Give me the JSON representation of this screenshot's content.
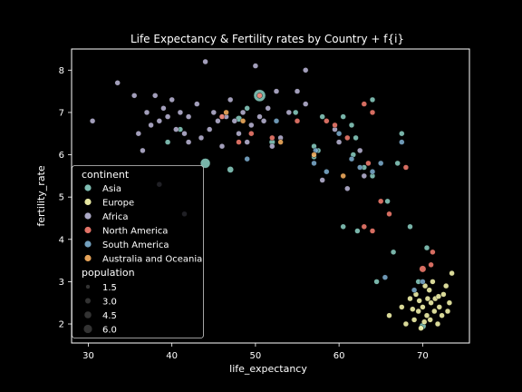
{
  "chart_data": {
    "type": "scatter",
    "title": "Life Expectancy & Fertility rates by Country + f{i}",
    "xlabel": "life_expectancy",
    "ylabel": "fertility_rate",
    "xlim": [
      28,
      75.6
    ],
    "ylim": [
      1.55,
      8.5
    ],
    "xticks": [
      30,
      40,
      50,
      60,
      70
    ],
    "yticks": [
      2,
      3,
      4,
      5,
      6,
      7,
      8
    ],
    "grid": false,
    "legend_placement": "lower-left",
    "legend": {
      "hue_title": "continent",
      "size_title": "population",
      "size_entries": [
        "1.5",
        "3.0",
        "4.5",
        "6.0"
      ]
    },
    "series": [
      {
        "name": "Asia",
        "color": "#8dd3c7",
        "points": [
          [
            44.0,
            5.8,
            2.5
          ],
          [
            50.5,
            7.4,
            3.3
          ],
          [
            48.0,
            6.85,
            1.2
          ],
          [
            47.0,
            5.65,
            1.2
          ],
          [
            52.0,
            6.3,
            1.0
          ],
          [
            54.8,
            7.0,
            0.8
          ],
          [
            57.0,
            6.2,
            0.8
          ],
          [
            57.5,
            6.1,
            0.8
          ],
          [
            57.0,
            5.95,
            0.8
          ],
          [
            60.5,
            6.9,
            0.8
          ],
          [
            61.5,
            6.7,
            0.8
          ],
          [
            61.7,
            6.0,
            0.8
          ],
          [
            63.0,
            5.7,
            0.8
          ],
          [
            64.0,
            5.5,
            0.8
          ],
          [
            65.8,
            4.9,
            0.8
          ],
          [
            60.5,
            4.3,
            0.8
          ],
          [
            62.2,
            4.2,
            0.8
          ],
          [
            66.5,
            3.7,
            0.8
          ],
          [
            68.5,
            4.3,
            0.8
          ],
          [
            69.5,
            3.0,
            0.8
          ],
          [
            70.5,
            3.8,
            0.8
          ],
          [
            64.5,
            3.0,
            0.8
          ],
          [
            70.0,
            1.95,
            1.3
          ],
          [
            67.0,
            5.8,
            0.8
          ],
          [
            67.5,
            6.5,
            0.8
          ],
          [
            62.0,
            6.4,
            0.8
          ],
          [
            64.0,
            7.3,
            0.8
          ],
          [
            41.0,
            6.6,
            0.8
          ],
          [
            39.5,
            6.3,
            0.8
          ],
          [
            46.0,
            6.9,
            0.8
          ],
          [
            49.0,
            7.1,
            0.8
          ],
          [
            58.0,
            6.9,
            0.8
          ]
        ]
      },
      {
        "name": "Europe",
        "color": "#ffffb3",
        "points": [
          [
            69.0,
            2.1,
            0.8
          ],
          [
            69.5,
            2.3,
            0.8
          ],
          [
            70.0,
            2.4,
            0.8
          ],
          [
            70.5,
            2.2,
            0.8
          ],
          [
            71.0,
            2.5,
            0.8
          ],
          [
            71.5,
            2.6,
            0.8
          ],
          [
            72.0,
            2.4,
            0.8
          ],
          [
            72.5,
            2.7,
            0.8
          ],
          [
            73.0,
            2.3,
            0.8
          ],
          [
            69.2,
            2.7,
            0.8
          ],
          [
            70.3,
            2.9,
            0.8
          ],
          [
            70.8,
            2.8,
            0.8
          ],
          [
            71.2,
            3.0,
            0.8
          ],
          [
            68.0,
            2.0,
            0.8
          ],
          [
            69.8,
            1.9,
            0.8
          ],
          [
            70.2,
            2.05,
            0.8
          ],
          [
            71.8,
            2.0,
            0.8
          ],
          [
            72.8,
            2.9,
            0.8
          ],
          [
            73.5,
            3.2,
            0.8
          ],
          [
            68.5,
            2.6,
            0.8
          ],
          [
            70.6,
            2.6,
            0.8
          ],
          [
            71.4,
            2.3,
            0.8
          ],
          [
            66.0,
            2.2,
            0.8
          ],
          [
            67.5,
            2.4,
            0.8
          ],
          [
            73.2,
            2.5,
            0.8
          ],
          [
            69.6,
            2.55,
            0.8
          ],
          [
            71.9,
            2.65,
            0.8
          ],
          [
            72.3,
            2.2,
            0.8
          ],
          [
            70.9,
            2.1,
            0.8
          ],
          [
            68.8,
            2.35,
            0.8
          ]
        ]
      },
      {
        "name": "Africa",
        "color": "#bebada",
        "points": [
          [
            30.5,
            6.8,
            0.8
          ],
          [
            33.5,
            7.7,
            0.8
          ],
          [
            35.5,
            7.4,
            0.8
          ],
          [
            36.0,
            6.5,
            0.8
          ],
          [
            37.0,
            7.0,
            0.8
          ],
          [
            37.5,
            6.7,
            0.8
          ],
          [
            38.0,
            7.4,
            0.8
          ],
          [
            38.5,
            6.8,
            0.8
          ],
          [
            39.0,
            7.1,
            0.8
          ],
          [
            39.5,
            6.9,
            0.8
          ],
          [
            40.0,
            7.3,
            0.8
          ],
          [
            40.5,
            6.6,
            0.8
          ],
          [
            41.0,
            7.0,
            0.8
          ],
          [
            41.5,
            6.5,
            0.8
          ],
          [
            42.0,
            6.9,
            0.8
          ],
          [
            43.0,
            7.2,
            0.8
          ],
          [
            43.5,
            6.4,
            0.8
          ],
          [
            44.0,
            8.2,
            0.8
          ],
          [
            44.5,
            6.6,
            0.8
          ],
          [
            45.0,
            7.0,
            0.8
          ],
          [
            45.5,
            6.8,
            0.8
          ],
          [
            46.0,
            6.2,
            0.8
          ],
          [
            46.5,
            6.9,
            0.8
          ],
          [
            47.0,
            7.3,
            0.8
          ],
          [
            47.5,
            6.8,
            0.8
          ],
          [
            48.0,
            6.5,
            0.8
          ],
          [
            48.5,
            7.0,
            0.8
          ],
          [
            49.0,
            6.3,
            0.8
          ],
          [
            49.5,
            6.7,
            0.8
          ],
          [
            50.0,
            8.1,
            0.8
          ],
          [
            50.5,
            6.9,
            0.8
          ],
          [
            51.0,
            6.8,
            0.8
          ],
          [
            51.5,
            7.1,
            0.8
          ],
          [
            52.0,
            6.2,
            0.8
          ],
          [
            52.5,
            7.5,
            0.8
          ],
          [
            53.0,
            6.4,
            0.8
          ],
          [
            54.0,
            7.0,
            0.8
          ],
          [
            55.0,
            7.5,
            0.8
          ],
          [
            56.0,
            7.2,
            0.8
          ],
          [
            56.0,
            8.0,
            0.8
          ],
          [
            59.5,
            6.6,
            0.8
          ],
          [
            60.0,
            6.3,
            0.8
          ],
          [
            61.0,
            5.2,
            0.8
          ],
          [
            62.5,
            6.1,
            0.8
          ],
          [
            63.0,
            5.5,
            0.8
          ],
          [
            58.0,
            5.4,
            0.8
          ],
          [
            36.5,
            6.1,
            0.8
          ],
          [
            41.5,
            4.6,
            0.8
          ],
          [
            38.5,
            5.3,
            0.8
          ],
          [
            42.0,
            6.3,
            0.8
          ]
        ]
      },
      {
        "name": "North America",
        "color": "#fb8072",
        "points": [
          [
            46.0,
            6.9,
            0.8
          ],
          [
            48.0,
            6.3,
            0.8
          ],
          [
            49.5,
            6.5,
            0.8
          ],
          [
            50.5,
            7.4,
            0.8
          ],
          [
            55.0,
            6.8,
            0.8
          ],
          [
            58.5,
            6.8,
            0.8
          ],
          [
            61.0,
            6.4,
            0.8
          ],
          [
            63.0,
            7.2,
            0.8
          ],
          [
            64.0,
            7.0,
            0.8
          ],
          [
            63.5,
            5.8,
            0.8
          ],
          [
            65.0,
            4.9,
            0.8
          ],
          [
            63.0,
            4.3,
            0.8
          ],
          [
            64.0,
            4.2,
            0.8
          ],
          [
            66.0,
            4.6,
            0.8
          ],
          [
            70.0,
            3.3,
            1.3
          ],
          [
            71.0,
            3.4,
            0.8
          ],
          [
            71.2,
            3.7,
            0.8
          ],
          [
            68.0,
            5.7,
            0.8
          ],
          [
            52.0,
            6.4,
            0.8
          ],
          [
            59.5,
            6.7,
            0.8
          ]
        ]
      },
      {
        "name": "South America",
        "color": "#80b1d3",
        "points": [
          [
            49.0,
            5.9,
            0.8
          ],
          [
            57.2,
            6.1,
            0.8
          ],
          [
            60.0,
            6.5,
            0.8
          ],
          [
            61.5,
            5.9,
            0.8
          ],
          [
            62.5,
            5.7,
            0.8
          ],
          [
            64.0,
            5.6,
            0.8
          ],
          [
            65.0,
            5.8,
            0.8
          ],
          [
            67.5,
            6.3,
            0.8
          ],
          [
            57.0,
            5.8,
            0.8
          ],
          [
            58.5,
            5.6,
            0.8
          ],
          [
            52.5,
            6.8,
            0.8
          ],
          [
            65.5,
            3.1,
            0.8
          ],
          [
            69.0,
            2.8,
            0.8
          ],
          [
            70.0,
            3.0,
            0.8
          ]
        ]
      },
      {
        "name": "Australia and Oceania",
        "color": "#fdb462",
        "points": [
          [
            46.5,
            7.0,
            0.8
          ],
          [
            48.5,
            6.8,
            0.8
          ],
          [
            53.0,
            6.3,
            0.8
          ],
          [
            57.0,
            6.0,
            0.8
          ],
          [
            60.5,
            5.5,
            0.8
          ]
        ]
      }
    ]
  }
}
